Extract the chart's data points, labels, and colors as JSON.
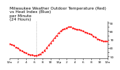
{
  "title": "Milwaukee Weather Outdoor Temperature (Red)\nvs Heat Index (Blue)\nper Minute\n(24 Hours)",
  "line_color": "#ff0000",
  "background_color": "#ffffff",
  "plot_bg_color": "#ffffff",
  "ylim": [
    48,
    92
  ],
  "xlim": [
    0,
    1440
  ],
  "yticks": [
    50,
    55,
    60,
    65,
    70,
    75,
    80,
    85,
    90
  ],
  "ytick_labels": [
    "50",
    "",
    "60",
    "",
    "70",
    "",
    "80",
    "",
    "90"
  ],
  "vline_x": 390,
  "temp_data_x": [
    0,
    30,
    60,
    90,
    120,
    150,
    180,
    210,
    240,
    270,
    300,
    330,
    360,
    390,
    420,
    450,
    480,
    510,
    540,
    570,
    600,
    630,
    660,
    690,
    720,
    750,
    780,
    810,
    840,
    870,
    900,
    930,
    960,
    990,
    1020,
    1050,
    1080,
    1110,
    1140,
    1170,
    1200,
    1230,
    1260,
    1290,
    1320,
    1350,
    1380,
    1410,
    1440
  ],
  "temp_data_y": [
    65,
    64,
    63,
    61,
    60,
    58,
    57,
    55,
    54,
    53,
    52,
    52,
    51,
    51,
    52,
    53,
    55,
    57,
    60,
    63,
    66,
    69,
    72,
    75,
    78,
    80,
    82,
    83,
    84,
    85,
    85,
    84,
    83,
    82,
    82,
    81,
    80,
    79,
    78,
    77,
    76,
    74,
    73,
    71,
    70,
    69,
    68,
    68,
    68
  ],
  "xtick_positions": [
    0,
    120,
    240,
    360,
    480,
    600,
    720,
    840,
    960,
    1080,
    1200,
    1320,
    1440
  ],
  "xtick_labels": [
    "12a",
    "2",
    "4",
    "6",
    "8",
    "10",
    "12p",
    "2",
    "4",
    "6",
    "8",
    "10",
    "12a"
  ],
  "title_fontsize": 4.2,
  "tick_fontsize": 3.2,
  "line_width": 0.7,
  "marker": ".",
  "markersize": 1.5,
  "vline_color": "#888888",
  "vline_style": ":"
}
